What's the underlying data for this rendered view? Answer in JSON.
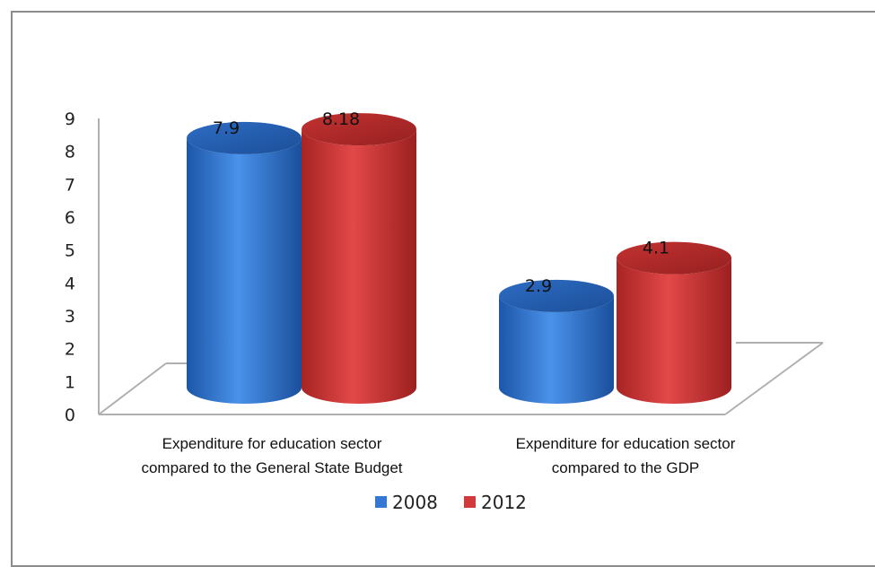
{
  "chart_data": {
    "type": "bar",
    "style": "3d-cylinder",
    "categories": [
      [
        "Expenditure for education sector",
        "compared to the General State Budget"
      ],
      [
        "Expenditure for education sector",
        "compared to the GDP"
      ]
    ],
    "series": [
      {
        "name": "2008",
        "values": [
          7.9,
          2.9
        ],
        "labels": [
          "7.9",
          "2.9"
        ],
        "color": "#3478d4"
      },
      {
        "name": "2012",
        "values": [
          8.18,
          4.1
        ],
        "labels": [
          "8.18",
          "4.1"
        ],
        "color": "#d13a3a"
      }
    ],
    "ylim": [
      0,
      9
    ],
    "yticks": [
      "0",
      "1",
      "2",
      "3",
      "4",
      "5",
      "6",
      "7",
      "8",
      "9"
    ],
    "legend": "bottom",
    "grid": false
  }
}
